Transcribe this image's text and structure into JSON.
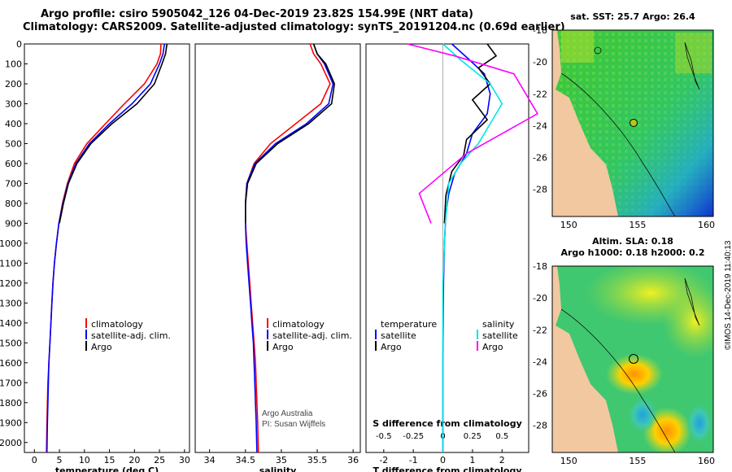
{
  "header": {
    "line1": "Argo profile: csiro 5905042_126 04-Dec-2019 23.82S 154.99E (NRT data)",
    "line2": "Climatology: CARS2009. Satellite-adjusted climatology: synTS_20191204.nc (0.69d earlier)"
  },
  "legend": {
    "climatology": "climatology",
    "satellite_adj": "satellite-adj. clim.",
    "argo": "Argo",
    "temperature": "temperature",
    "salinity": "salinity",
    "satellite": "satellite"
  },
  "credits": {
    "line1": "Argo Australia",
    "line2": "PI: Susan Wijffels"
  },
  "watermark": "©IMOS 14-Dec-2019 11:40:13",
  "colors": {
    "climatology": "#ff0000",
    "satellite": "#0000ff",
    "argo": "#000000",
    "sal_satellite": "#00e5e5",
    "sal_argo": "#ff00ff",
    "land": "#f2c8a0"
  },
  "chart_data": [
    {
      "type": "line",
      "panel": "temperature",
      "xlabel": "temperature (deg C)",
      "xlim": [
        -2,
        31
      ],
      "ylim": [
        2050,
        0
      ],
      "xticks": [
        0,
        5,
        10,
        15,
        20,
        25,
        30
      ],
      "yticks": [
        0,
        100,
        200,
        300,
        400,
        500,
        600,
        700,
        800,
        900,
        1000,
        1100,
        1200,
        1300,
        1400,
        1500,
        1600,
        1700,
        1800,
        1900,
        2000
      ],
      "series": [
        {
          "name": "climatology",
          "x": [
            25.3,
            25.2,
            24.5,
            22.0,
            18.0,
            14.2,
            10.5,
            8.0,
            6.6,
            5.6,
            4.9,
            4.4,
            4.0,
            3.7,
            3.5,
            3.3,
            3.1,
            2.9,
            2.7,
            2.6,
            2.5,
            2.4
          ],
          "y": [
            0,
            50,
            100,
            200,
            300,
            400,
            500,
            600,
            700,
            800,
            900,
            1000,
            1100,
            1200,
            1300,
            1400,
            1500,
            1600,
            1700,
            1800,
            1900,
            2050
          ]
        },
        {
          "name": "satellite-adj. clim.",
          "x": [
            26.0,
            25.7,
            25.0,
            23.2,
            19.5,
            15.0,
            11.0,
            8.3,
            6.7,
            5.7,
            4.9,
            4.4,
            4.0,
            3.7,
            3.5,
            3.3,
            3.1,
            2.9,
            2.8,
            2.7,
            2.6,
            2.5
          ],
          "y": [
            0,
            50,
            100,
            200,
            300,
            400,
            500,
            600,
            700,
            800,
            900,
            1000,
            1100,
            1200,
            1300,
            1400,
            1500,
            1600,
            1700,
            1800,
            1900,
            2050
          ]
        },
        {
          "name": "Argo",
          "x": [
            26.5,
            26.2,
            25.5,
            24.0,
            20.5,
            15.5,
            11.3,
            8.5,
            6.8,
            5.8,
            5.0
          ],
          "y": [
            0,
            50,
            100,
            200,
            300,
            400,
            500,
            600,
            700,
            800,
            900
          ]
        }
      ]
    },
    {
      "type": "line",
      "panel": "salinity",
      "xlabel": "salinity",
      "xlim": [
        33.8,
        36.1
      ],
      "ylim": [
        2050,
        0
      ],
      "xticks": [
        34,
        34.5,
        35,
        35.5,
        36
      ],
      "series": [
        {
          "name": "climatology",
          "x": [
            35.4,
            35.45,
            35.55,
            35.68,
            35.55,
            35.2,
            34.85,
            34.62,
            34.52,
            34.5,
            34.5,
            34.52,
            34.54,
            34.56,
            34.58,
            34.6,
            34.62,
            34.64,
            34.65,
            34.66,
            34.67,
            34.68
          ],
          "y": [
            0,
            50,
            100,
            200,
            300,
            400,
            500,
            600,
            700,
            800,
            900,
            1000,
            1100,
            1200,
            1300,
            1400,
            1500,
            1600,
            1700,
            1800,
            1900,
            2050
          ]
        },
        {
          "name": "satellite-adj. clim.",
          "x": [
            35.45,
            35.5,
            35.6,
            35.72,
            35.66,
            35.35,
            34.92,
            34.63,
            34.52,
            34.5,
            34.5,
            34.51,
            34.53,
            34.55,
            34.57,
            34.59,
            34.61,
            34.62,
            34.63,
            34.64,
            34.65,
            34.66
          ],
          "y": [
            0,
            50,
            100,
            200,
            300,
            400,
            500,
            600,
            700,
            800,
            900,
            1000,
            1100,
            1200,
            1300,
            1400,
            1500,
            1600,
            1700,
            1800,
            1900,
            2050
          ]
        },
        {
          "name": "Argo",
          "x": [
            35.45,
            35.5,
            35.62,
            35.74,
            35.7,
            35.38,
            34.95,
            34.65,
            34.53,
            34.5,
            34.5
          ],
          "y": [
            0,
            50,
            100,
            200,
            300,
            400,
            500,
            600,
            700,
            800,
            900
          ]
        }
      ]
    },
    {
      "type": "line",
      "panel": "difference",
      "xlabel": "T difference from climatology",
      "xlabel_top": "S difference from climatology",
      "xlim": [
        -2.6,
        2.9
      ],
      "ylim": [
        2050,
        0
      ],
      "xticks": [
        -2,
        -1,
        0,
        1,
        2
      ],
      "s_ticks": [
        -0.5,
        -0.25,
        0,
        0.25,
        0.5
      ],
      "s_tick_labels": [
        "-0.5",
        "-0.25",
        "0",
        "0.25",
        "0.5"
      ],
      "series": [
        {
          "name": "temperature satellite",
          "x": [
            0.3,
            0.9,
            1.4,
            1.6,
            1.5,
            1.0,
            0.8,
            0.4,
            0.2,
            0.1,
            0.05,
            0.02,
            0.0,
            0.0
          ],
          "y": [
            0,
            80,
            150,
            250,
            350,
            450,
            550,
            650,
            750,
            850,
            1000,
            1200,
            1600,
            2050
          ]
        },
        {
          "name": "temperature Argo",
          "x": [
            1.5,
            1.8,
            1.2,
            1.6,
            1.0,
            1.5,
            0.8,
            0.7,
            0.3,
            0.1,
            0.05
          ],
          "y": [
            0,
            60,
            120,
            200,
            280,
            380,
            480,
            560,
            640,
            760,
            900
          ]
        },
        {
          "name": "salinity satellite",
          "x": [
            0.0,
            0.15,
            0.4,
            0.5,
            0.4,
            0.3,
            0.15,
            0.05,
            0.02,
            0.0,
            0.0
          ],
          "y": [
            0,
            80,
            200,
            300,
            400,
            500,
            600,
            700,
            900,
            1200,
            2050
          ]
        },
        {
          "name": "salinity Argo",
          "x": [
            -0.3,
            0.1,
            0.6,
            0.7,
            0.8,
            0.5,
            0.2,
            0.0,
            -0.2,
            -0.1
          ],
          "y": [
            0,
            60,
            150,
            250,
            350,
            450,
            550,
            650,
            750,
            900
          ]
        }
      ]
    },
    {
      "type": "heatmap",
      "panel": "sst map",
      "title": "sat. SST: 25.7 Argo: 26.4",
      "xticks": [
        150,
        155,
        160
      ],
      "yticks": [
        -18,
        -20,
        -22,
        -24,
        -26,
        -28
      ],
      "xlim": [
        148.8,
        160.5
      ],
      "ylim": [
        -29.7,
        -18
      ],
      "argo_position": [
        154.99,
        -23.82
      ]
    },
    {
      "type": "heatmap",
      "panel": "sla map",
      "title": "Altim. SLA: 0.18",
      "subtitle": "Argo h1000: 0.18 h2000: 0.2",
      "xticks": [
        150,
        155,
        160
      ],
      "yticks": [
        -18,
        -20,
        -22,
        -24,
        -26,
        -28
      ],
      "xlim": [
        148.8,
        160.5
      ],
      "ylim": [
        -29.7,
        -18
      ],
      "argo_position": [
        154.99,
        -23.82
      ]
    }
  ]
}
